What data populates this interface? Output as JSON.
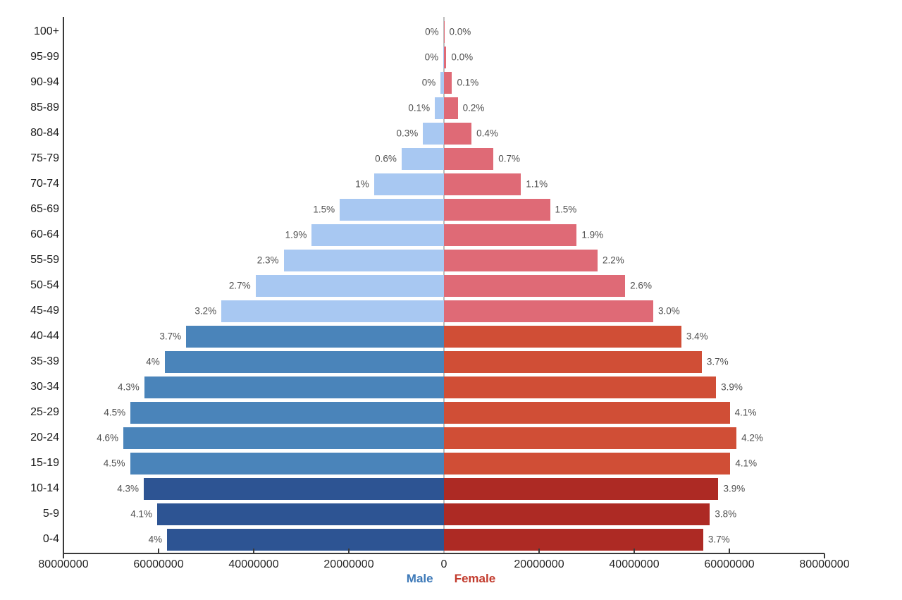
{
  "chart_data": {
    "type": "bar",
    "subtype": "population-pyramid",
    "orientation": "horizontal",
    "title": "",
    "xlabel": "",
    "ylabel": "",
    "grid": "center-zero-line-only",
    "value_unit": "millions of people",
    "x_axis": {
      "max_each_side": 80,
      "tick_labels": [
        "80000000",
        "60000000",
        "40000000",
        "20000000",
        "0",
        "20000000",
        "40000000",
        "60000000",
        "80000000"
      ]
    },
    "legend": {
      "position": "bottom-center",
      "entries": [
        {
          "label": "Male",
          "color": "#3d79b8"
        },
        {
          "label": "Female",
          "color": "#c23a2c"
        }
      ]
    },
    "rows": [
      {
        "age": "100+",
        "male_label": "0%",
        "female_label": "0.0%",
        "male_value": 0.05,
        "female_value": 0.08,
        "shade": "light"
      },
      {
        "age": "95-99",
        "male_label": "0%",
        "female_label": "0.0%",
        "male_value": 0.12,
        "female_value": 0.5,
        "shade": "light"
      },
      {
        "age": "90-94",
        "male_label": "0%",
        "female_label": "0.1%",
        "male_value": 0.7,
        "female_value": 1.7,
        "shade": "light"
      },
      {
        "age": "85-89",
        "male_label": "0.1%",
        "female_label": "0.2%",
        "male_value": 1.9,
        "female_value": 2.9,
        "shade": "light"
      },
      {
        "age": "80-84",
        "male_label": "0.3%",
        "female_label": "0.4%",
        "male_value": 4.4,
        "female_value": 5.8,
        "shade": "light"
      },
      {
        "age": "75-79",
        "male_label": "0.6%",
        "female_label": "0.7%",
        "male_value": 8.9,
        "female_value": 10.4,
        "shade": "light"
      },
      {
        "age": "70-74",
        "male_label": "1%",
        "female_label": "1.1%",
        "male_value": 14.7,
        "female_value": 16.2,
        "shade": "light"
      },
      {
        "age": "65-69",
        "male_label": "1.5%",
        "female_label": "1.5%",
        "male_value": 21.9,
        "female_value": 22.3,
        "shade": "light"
      },
      {
        "age": "60-64",
        "male_label": "1.9%",
        "female_label": "1.9%",
        "male_value": 27.8,
        "female_value": 27.9,
        "shade": "light"
      },
      {
        "age": "55-59",
        "male_label": "2.3%",
        "female_label": "2.2%",
        "male_value": 33.7,
        "female_value": 32.3,
        "shade": "light"
      },
      {
        "age": "50-54",
        "male_label": "2.7%",
        "female_label": "2.6%",
        "male_value": 39.6,
        "female_value": 38.1,
        "shade": "light"
      },
      {
        "age": "45-49",
        "male_label": "3.2%",
        "female_label": "3.0%",
        "male_value": 46.8,
        "female_value": 44.0,
        "shade": "light"
      },
      {
        "age": "40-44",
        "male_label": "3.7%",
        "female_label": "3.4%",
        "male_value": 54.2,
        "female_value": 49.9,
        "shade": "medium"
      },
      {
        "age": "35-39",
        "male_label": "4%",
        "female_label": "3.7%",
        "male_value": 58.7,
        "female_value": 54.2,
        "shade": "medium"
      },
      {
        "age": "30-34",
        "male_label": "4.3%",
        "female_label": "3.9%",
        "male_value": 63.0,
        "female_value": 57.2,
        "shade": "medium"
      },
      {
        "age": "25-29",
        "male_label": "4.5%",
        "female_label": "4.1%",
        "male_value": 65.9,
        "female_value": 60.1,
        "shade": "medium"
      },
      {
        "age": "20-24",
        "male_label": "4.6%",
        "female_label": "4.2%",
        "male_value": 67.4,
        "female_value": 61.5,
        "shade": "medium"
      },
      {
        "age": "15-19",
        "male_label": "4.5%",
        "female_label": "4.1%",
        "male_value": 66.0,
        "female_value": 60.2,
        "shade": "medium"
      },
      {
        "age": "10-14",
        "male_label": "4.3%",
        "female_label": "3.9%",
        "male_value": 63.1,
        "female_value": 57.7,
        "shade": "dark"
      },
      {
        "age": "5-9",
        "male_label": "4.1%",
        "female_label": "3.8%",
        "male_value": 60.3,
        "female_value": 55.9,
        "shade": "dark"
      },
      {
        "age": "0-4",
        "male_label": "4%",
        "female_label": "3.7%",
        "male_value": 58.2,
        "female_value": 54.5,
        "shade": "dark"
      }
    ]
  },
  "colors": {
    "male": {
      "light": "#a8c8f2",
      "medium": "#4a84ba",
      "dark": "#2d5493"
    },
    "female": {
      "light": "#df6a76",
      "medium": "#d04e36",
      "dark": "#ad2a24"
    },
    "axis": "#3a3a3a",
    "zero_gridline": "#bdbdbd",
    "percent_label": "#4f4f4f"
  }
}
